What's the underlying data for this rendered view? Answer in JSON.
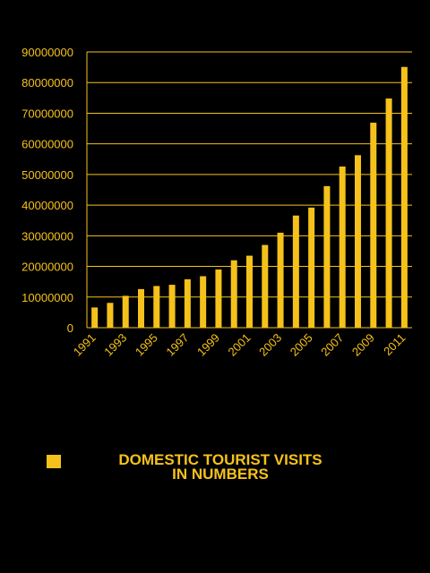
{
  "chart_data": {
    "type": "bar",
    "categories": [
      "1991",
      "1992",
      "1993",
      "1994",
      "1995",
      "1996",
      "1997",
      "1998",
      "1999",
      "2000",
      "2001",
      "2002",
      "2003",
      "2004",
      "2005",
      "2006",
      "2007",
      "2008",
      "2009",
      "2010",
      "2011"
    ],
    "x_tick_labels": [
      "1991",
      "1993",
      "1995",
      "1997",
      "1999",
      "2001",
      "2003",
      "2005",
      "2007",
      "2009",
      "2011"
    ],
    "series": [
      {
        "name": "DOMESTIC TOURIST VISITS IN NUMBERS",
        "values": [
          6600000,
          8100000,
          10400000,
          12600000,
          13600000,
          14000000,
          15800000,
          16800000,
          19000000,
          22000000,
          23500000,
          27000000,
          31000000,
          36600000,
          39200000,
          46200000,
          52600000,
          56300000,
          66900000,
          74800000,
          85100000
        ]
      }
    ],
    "ylim": [
      0,
      90000000
    ],
    "y_ticks": [
      0,
      10000000,
      20000000,
      30000000,
      40000000,
      50000000,
      60000000,
      70000000,
      80000000,
      90000000
    ],
    "grid": true,
    "legend_position": "bottom",
    "colors": {
      "bar": "#f5c21b",
      "background": "#000000",
      "grid": "#f5c21b",
      "text": "#f5c21b"
    }
  },
  "legend": {
    "line1": "DOMESTIC TOURIST VISITS",
    "line2": "IN NUMBERS"
  }
}
